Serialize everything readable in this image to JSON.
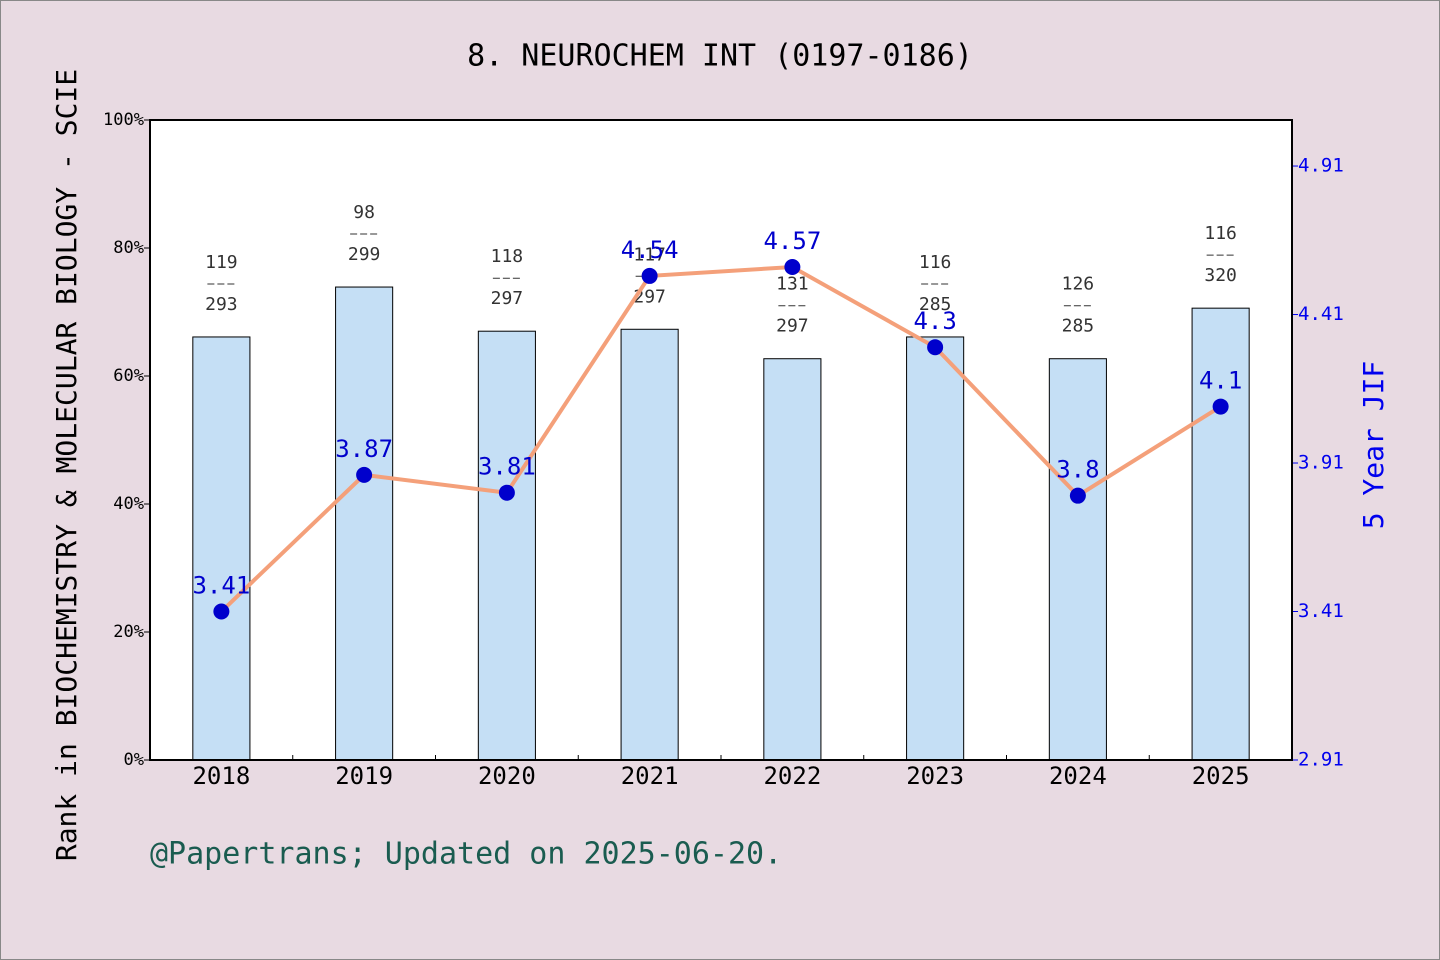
{
  "chart_data": {
    "type": "bar-line",
    "title": "8. NEUROCHEM INT (0197-0186)",
    "y_label": "Rank in BIOCHEMISTRY & MOLECULAR BIOLOGY - SCIE",
    "y2_label": "5 Year JIF",
    "footer": "@Papertrans; Updated on 2025-06-20.",
    "categories": [
      "2018",
      "2019",
      "2020",
      "2021",
      "2022",
      "2023",
      "2024",
      "2025"
    ],
    "series": [
      {
        "type": "bar",
        "color": "#c5dff5",
        "values": [
          66.1,
          73.9,
          67.0,
          67.3,
          62.7,
          66.1,
          62.7,
          70.6
        ]
      },
      {
        "type": "line",
        "axis": "y2",
        "color": "#f4a07a",
        "marker_color": "#0000cc",
        "values": [
          3.41,
          3.87,
          3.81,
          4.54,
          4.57,
          4.3,
          3.8,
          4.1
        ]
      }
    ],
    "ranks": [
      119,
      98,
      118,
      117,
      131,
      116,
      126,
      116
    ],
    "totals": [
      293,
      299,
      297,
      297,
      297,
      285,
      285,
      320
    ],
    "ylim": [
      0,
      100
    ],
    "yticks": [
      {
        "value": 0,
        "label": "0%"
      },
      {
        "value": 20,
        "label": "20%"
      },
      {
        "value": 40,
        "label": "40%"
      },
      {
        "value": 60,
        "label": "60%"
      },
      {
        "value": 80,
        "label": "80%"
      },
      {
        "value": 100,
        "label": "100%"
      }
    ],
    "y2lim": [
      2.91,
      5.065
    ],
    "y2ticks": [
      2.91,
      3.41,
      3.91,
      4.41,
      4.91
    ]
  }
}
